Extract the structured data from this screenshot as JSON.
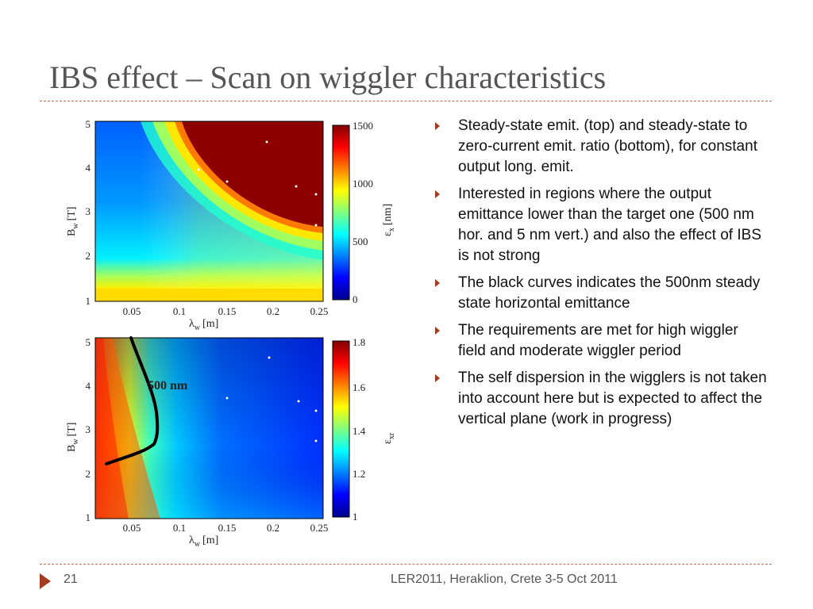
{
  "slide": {
    "title": "IBS effect – Scan on wiggler characteristics",
    "bullets": [
      "Steady-state emit. (top) and steady-state to zero-current emit. ratio (bottom), for constant output long. emit.",
      "Interested in regions where the output emittance lower than the target one (500 nm hor. and 5 nm vert.) and also the effect of IBS is not strong",
      "The black curves indicates the 500nm steady state horizontal emittance",
      "The requirements are met for high wiggler field and moderate wiggler period",
      "The self dispersion in the wigglers is not taken into account here but is expected to affect the vertical plane (work in progress)"
    ],
    "footer": {
      "page": "21",
      "text": "LER2011, Heraklion, Crete    3-5 Oct 2011"
    }
  },
  "colors": {
    "title": "#555555",
    "bullet_marker": "#a23b1f",
    "divider": "#b86a55"
  },
  "plots": {
    "top": {
      "type": "heatmap",
      "xticks": [
        "0.05",
        "0.1",
        "0.15",
        "0.2",
        "0.25"
      ],
      "yticks": [
        "1",
        "2",
        "3",
        "4",
        "5"
      ],
      "xlabel_main": "λ",
      "xlabel_sub": "w",
      "xlabel_unit": "[m]",
      "ylabel_main": "B",
      "ylabel_sub": "w",
      "ylabel_unit": "[T]",
      "cbar_ticks": [
        "0",
        "500",
        "1000",
        "1500"
      ],
      "cbar_label_main": "ε",
      "cbar_label_sub": "x",
      "cbar_label_unit": "[nm]"
    },
    "bottom": {
      "type": "heatmap",
      "xticks": [
        "0.05",
        "0.1",
        "0.15",
        "0.2",
        "0.25"
      ],
      "yticks": [
        "1",
        "2",
        "3",
        "4",
        "5"
      ],
      "xlabel_main": "λ",
      "xlabel_sub": "w",
      "xlabel_unit": "[m]",
      "ylabel_main": "B",
      "ylabel_sub": "w",
      "ylabel_unit": "[T]",
      "cbar_ticks": [
        "1",
        "1.2",
        "1.4",
        "1.6",
        "1.8"
      ],
      "cbar_label_main": "ε",
      "cbar_label_sub": "xr",
      "cbar_label_unit": "",
      "annotation": "500 nm"
    }
  }
}
